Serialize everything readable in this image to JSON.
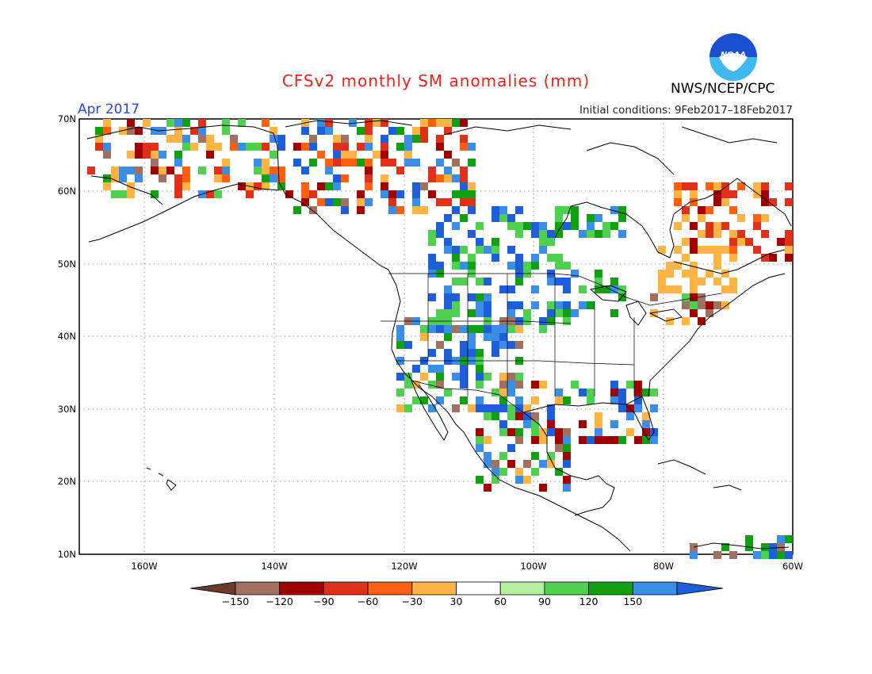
{
  "header": {
    "title": "CFSv2 monthly SM anomalies (mm)",
    "month": "Apr 2017",
    "initial_conditions": "Initial conditions: 9Feb2017–18Feb2017",
    "agency": "NWS/NCEP/CPC",
    "logo_text": "NOAA"
  },
  "map": {
    "lon_range": [
      -172,
      -60
    ],
    "lat_range": [
      10,
      70
    ],
    "lat_ticks": [
      "70N",
      "60N",
      "50N",
      "40N",
      "30N",
      "20N",
      "10N"
    ],
    "lon_ticks": [
      "160W",
      "140W",
      "120W",
      "100W",
      "80W",
      "60W"
    ]
  },
  "legend": {
    "labels": [
      "−150",
      "−120",
      "−90",
      "−60",
      "−30",
      "30",
      "60",
      "90",
      "120",
      "150"
    ],
    "colors": [
      "#6b3a2a",
      "#a07060",
      "#a00000",
      "#e0301a",
      "#ff6010",
      "#ffb443",
      "#ffffff",
      "#b4f0a0",
      "#50d050",
      "#10a010",
      "#3a8ee8",
      "#1e5ed8"
    ]
  },
  "colors": {
    "title": "#e8231a",
    "month": "#2a4bd7",
    "logo_blue": "#1a4fd0",
    "logo_light": "#3fb8f0"
  }
}
